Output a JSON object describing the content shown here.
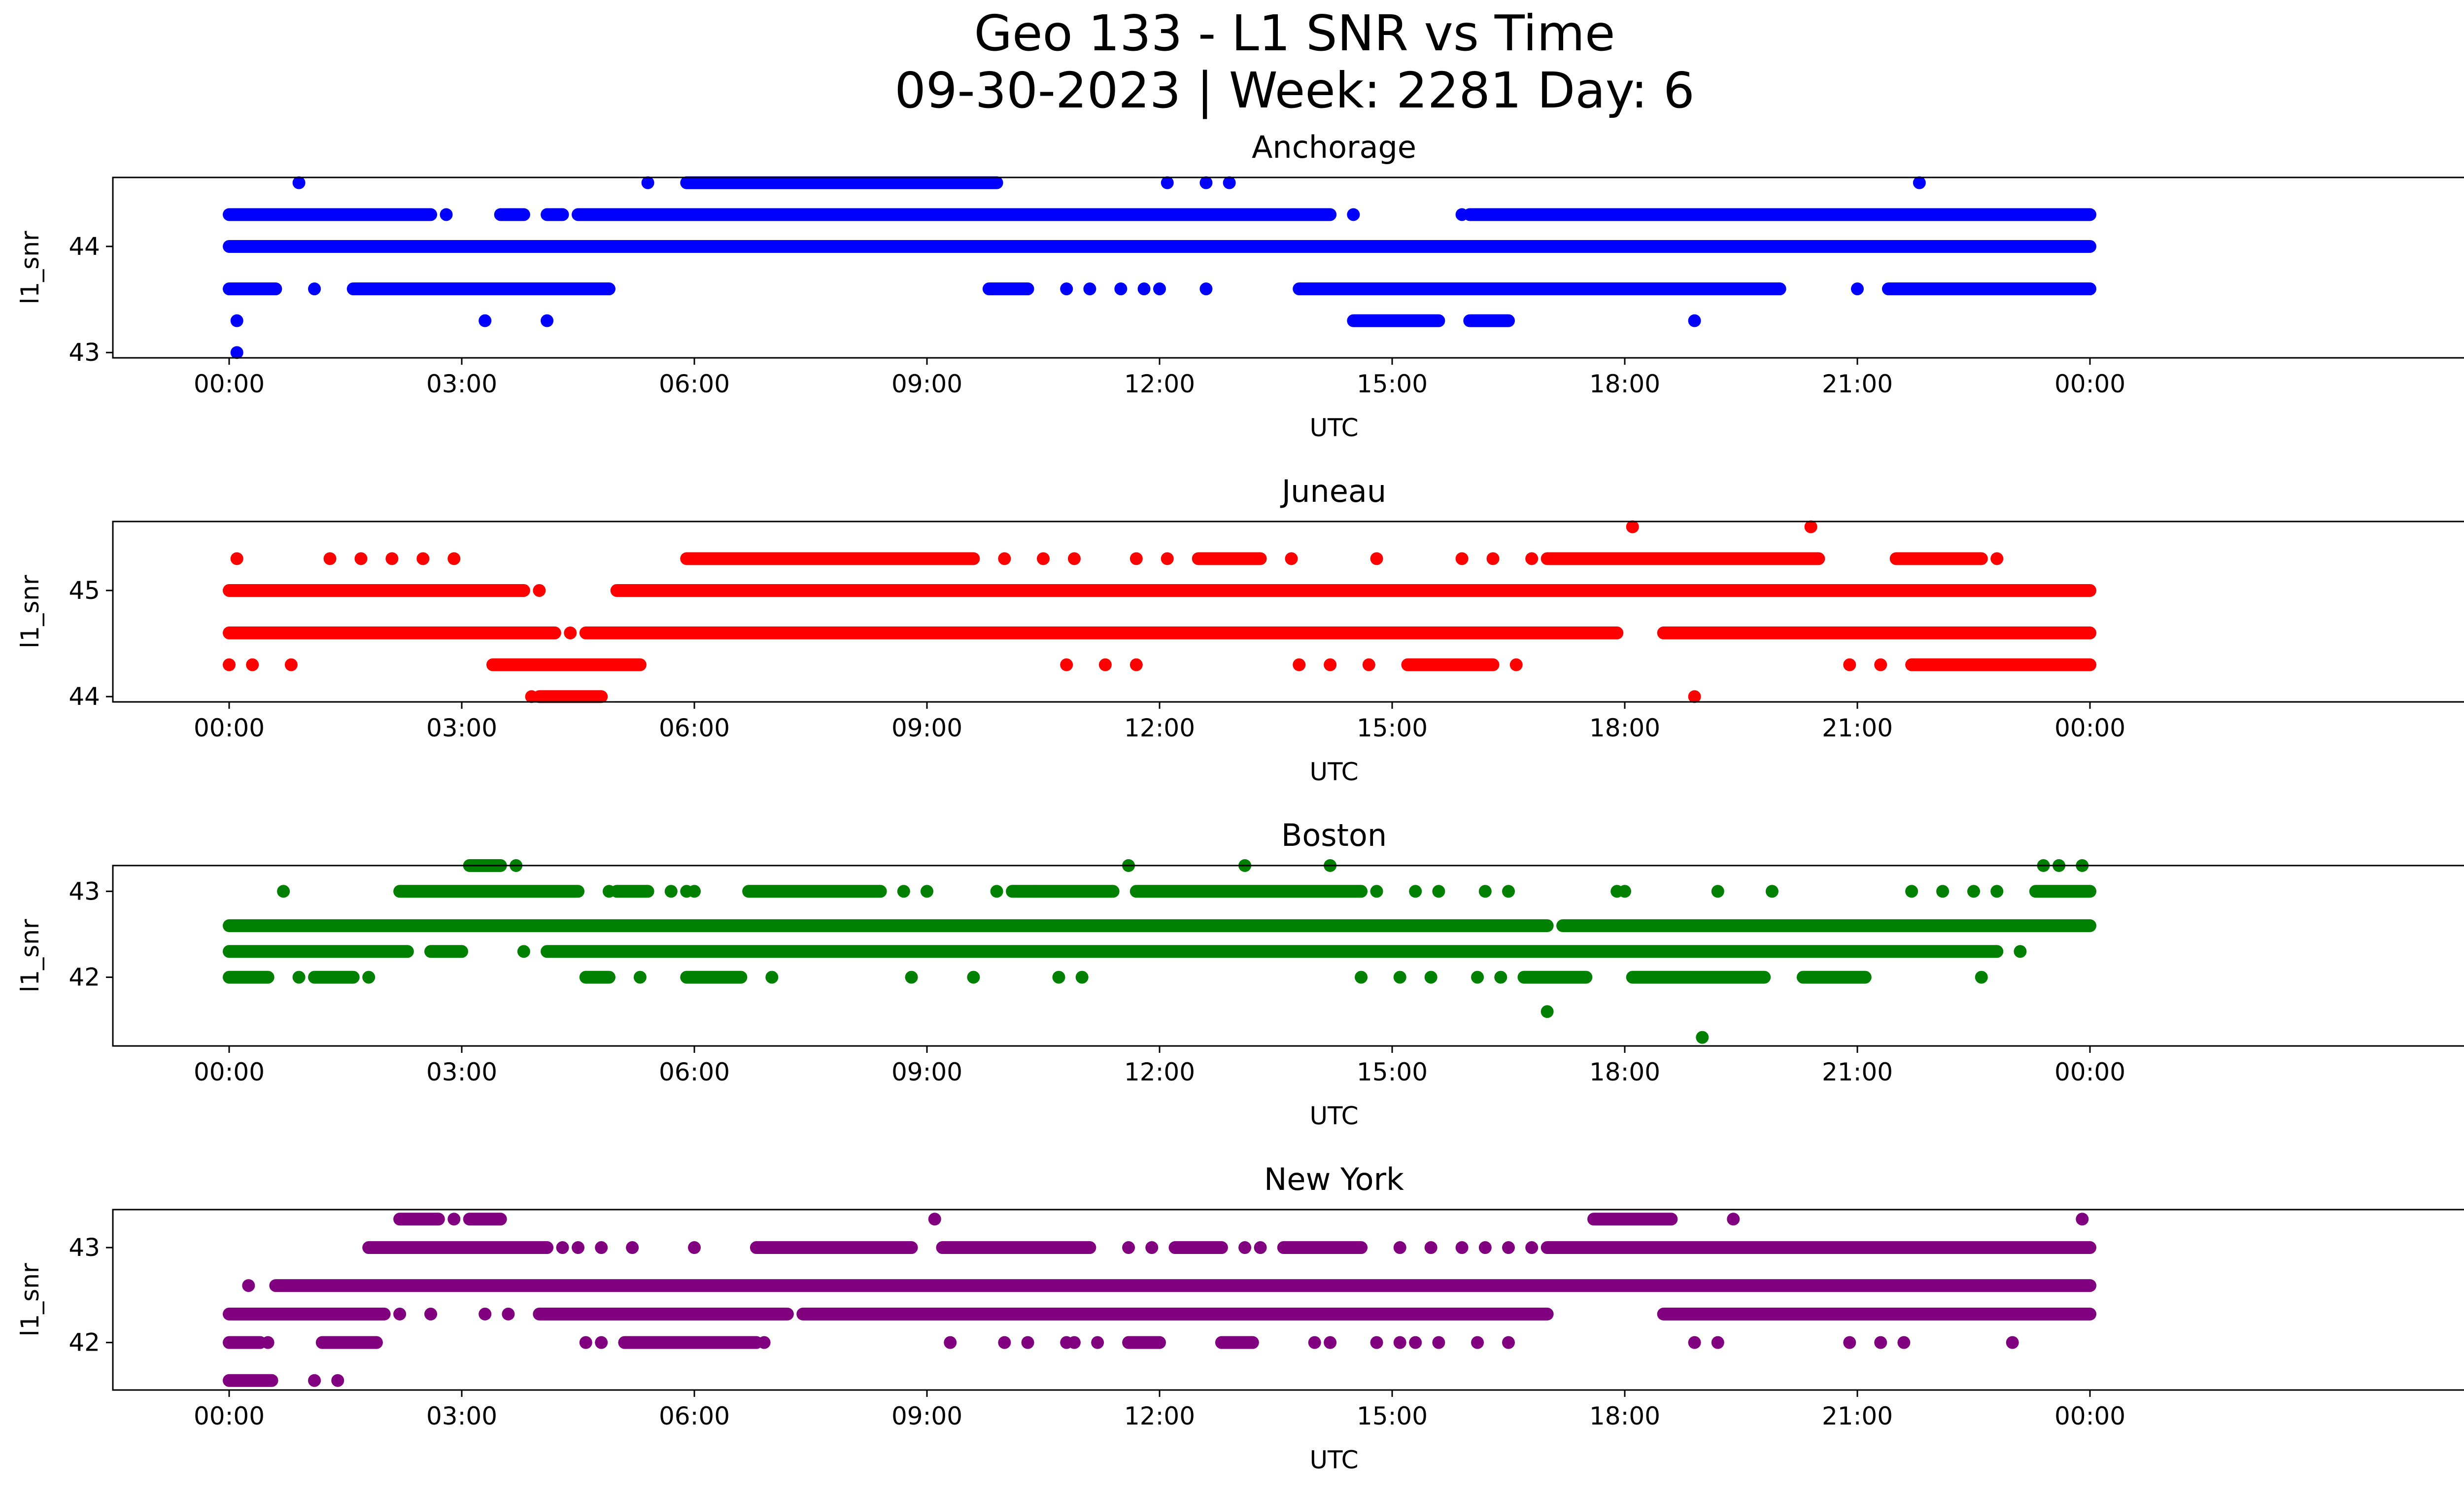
{
  "figure": {
    "title_line1": "Geo 133 - L1 SNR vs Time",
    "title_line2": "09-30-2023 | Week: 2281 Day: 6"
  },
  "chart_data": [
    {
      "type": "scatter",
      "title": "Anchorage",
      "xlabel": "UTC",
      "ylabel": "l1_snr",
      "color": "#0000ff",
      "x_unit": "hours UTC from 2023-09-30 00:00",
      "xlim": [
        -1.5,
        30.0
      ],
      "ylim": [
        42.95,
        44.65
      ],
      "x_ticks": [
        "00:00",
        "03:00",
        "06:00",
        "09:00",
        "12:00",
        "15:00",
        "18:00",
        "21:00",
        "00:00"
      ],
      "y_ticks": [
        43,
        44
      ],
      "levels": [
        43.0,
        43.3,
        43.6,
        44.0,
        44.3,
        44.6
      ],
      "series": [
        {
          "y": 44.0,
          "segments": [
            [
              0.0,
              24.0
            ]
          ]
        },
        {
          "y": 44.3,
          "segments": [
            [
              0.0,
              2.6
            ],
            [
              3.5,
              3.8
            ],
            [
              4.1,
              4.3
            ],
            [
              4.5,
              14.2
            ],
            [
              16.0,
              24.0
            ]
          ],
          "points": [
            2.8,
            14.5,
            15.9
          ]
        },
        {
          "y": 43.6,
          "segments": [
            [
              0.0,
              0.6
            ],
            [
              1.6,
              4.9
            ],
            [
              9.8,
              10.3
            ],
            [
              13.8,
              20.0
            ],
            [
              21.4,
              24.0
            ]
          ],
          "points": [
            1.1,
            10.8,
            11.1,
            11.5,
            11.8,
            12.0,
            12.6,
            21.0
          ]
        },
        {
          "y": 44.6,
          "segments": [
            [
              5.9,
              9.9
            ]
          ],
          "points": [
            0.9,
            5.4,
            12.1,
            12.6,
            12.9,
            21.8
          ]
        },
        {
          "y": 43.3,
          "segments": [
            [
              14.5,
              15.6
            ],
            [
              16.0,
              16.5
            ]
          ],
          "points": [
            0.1,
            3.3,
            4.1,
            18.9
          ]
        },
        {
          "y": 43.0,
          "points": [
            0.1
          ]
        }
      ]
    },
    {
      "type": "scatter",
      "title": "Juneau",
      "xlabel": "UTC",
      "ylabel": "l1_snr",
      "color": "#ff0000",
      "x_unit": "hours UTC from 2023-09-30 00:00",
      "xlim": [
        -1.5,
        30.0
      ],
      "ylim": [
        43.95,
        45.65
      ],
      "x_ticks": [
        "00:00",
        "03:00",
        "06:00",
        "09:00",
        "12:00",
        "15:00",
        "18:00",
        "21:00",
        "00:00"
      ],
      "y_ticks": [
        44,
        45
      ],
      "levels": [
        44.0,
        44.3,
        44.6,
        45.0,
        45.3,
        45.6
      ],
      "series": [
        {
          "y": 45.0,
          "segments": [
            [
              0.0,
              3.8
            ],
            [
              5.0,
              24.0
            ]
          ],
          "points": [
            4.0
          ]
        },
        {
          "y": 44.6,
          "segments": [
            [
              0.0,
              4.2
            ],
            [
              4.6,
              17.9
            ],
            [
              18.5,
              24.0
            ]
          ],
          "points": [
            4.4
          ]
        },
        {
          "y": 44.3,
          "segments": [
            [
              3.4,
              5.3
            ],
            [
              15.2,
              16.3
            ],
            [
              21.7,
              24.0
            ]
          ],
          "points": [
            0.0,
            0.3,
            0.8,
            10.8,
            11.3,
            11.7,
            13.8,
            14.2,
            14.7,
            16.6,
            20.9,
            21.3
          ]
        },
        {
          "y": 45.3,
          "segments": [
            [
              5.9,
              9.6
            ],
            [
              12.5,
              13.3
            ],
            [
              17.0,
              20.5
            ],
            [
              21.5,
              22.6
            ]
          ],
          "points": [
            0.1,
            1.3,
            1.7,
            2.1,
            2.5,
            2.9,
            10.0,
            10.5,
            10.9,
            11.7,
            12.1,
            13.7,
            14.8,
            15.9,
            16.3,
            16.8,
            22.8
          ]
        },
        {
          "y": 44.0,
          "segments": [
            [
              4.0,
              4.8
            ]
          ],
          "points": [
            3.9,
            18.9
          ]
        },
        {
          "y": 45.6,
          "points": [
            18.1,
            20.4
          ]
        }
      ]
    },
    {
      "type": "scatter",
      "title": "Boston",
      "xlabel": "UTC",
      "ylabel": "l1_snr",
      "color": "#008000",
      "x_unit": "hours UTC from 2023-09-30 00:00",
      "xlim": [
        -1.5,
        30.0
      ],
      "ylim": [
        41.2,
        43.3
      ],
      "x_ticks": [
        "00:00",
        "03:00",
        "06:00",
        "09:00",
        "12:00",
        "15:00",
        "18:00",
        "21:00",
        "00:00"
      ],
      "y_ticks": [
        42,
        43
      ],
      "levels": [
        41.3,
        41.6,
        42.0,
        42.3,
        42.6,
        43.0,
        43.3
      ],
      "series": [
        {
          "y": 42.6,
          "segments": [
            [
              0.0,
              17.0
            ],
            [
              17.2,
              24.0
            ]
          ],
          "points": [
            0.1
          ]
        },
        {
          "y": 42.3,
          "segments": [
            [
              0.0,
              2.3
            ],
            [
              2.6,
              3.0
            ],
            [
              4.1,
              22.8
            ]
          ],
          "points": [
            3.8,
            23.1
          ]
        },
        {
          "y": 42.0,
          "segments": [
            [
              0.0,
              0.5
            ],
            [
              1.1,
              1.6
            ],
            [
              4.6,
              4.9
            ],
            [
              5.9,
              6.6
            ],
            [
              16.7,
              17.5
            ],
            [
              18.1,
              19.8
            ],
            [
              20.3,
              21.1
            ]
          ],
          "points": [
            0.9,
            1.8,
            5.3,
            7.0,
            8.8,
            9.6,
            10.7,
            11.0,
            14.6,
            15.1,
            15.5,
            16.1,
            16.4,
            22.6
          ]
        },
        {
          "y": 43.0,
          "segments": [
            [
              2.2,
              4.5
            ],
            [
              5.0,
              5.4
            ],
            [
              6.7,
              8.4
            ],
            [
              10.1,
              11.4
            ],
            [
              11.7,
              14.6
            ],
            [
              23.3,
              24.0
            ]
          ],
          "points": [
            0.7,
            4.9,
            5.7,
            5.9,
            6.0,
            8.7,
            9.0,
            9.9,
            10.4,
            14.8,
            15.3,
            15.6,
            16.2,
            16.5,
            17.9,
            18.0,
            19.2,
            19.9,
            21.7,
            22.1,
            22.5,
            22.8
          ]
        },
        {
          "y": 43.3,
          "segments": [
            [
              3.1,
              3.5
            ]
          ],
          "points": [
            3.7,
            11.6,
            13.1,
            14.2,
            23.4,
            23.6,
            23.9
          ]
        },
        {
          "y": 41.6,
          "points": [
            17.0
          ]
        },
        {
          "y": 41.3,
          "points": [
            19.0
          ]
        }
      ]
    },
    {
      "type": "scatter",
      "title": "New York",
      "xlabel": "UTC",
      "ylabel": "l1_snr",
      "color": "#800080",
      "x_unit": "hours UTC from 2023-09-30 00:00",
      "xlim": [
        -1.5,
        30.0
      ],
      "ylim": [
        41.5,
        43.4
      ],
      "x_ticks": [
        "00:00",
        "03:00",
        "06:00",
        "09:00",
        "12:00",
        "15:00",
        "18:00",
        "21:00",
        "00:00"
      ],
      "y_ticks": [
        42,
        43
      ],
      "levels": [
        41.6,
        42.0,
        42.3,
        42.6,
        43.0,
        43.3
      ],
      "series": [
        {
          "y": 42.6,
          "segments": [
            [
              0.6,
              24.0
            ]
          ],
          "points": [
            0.25
          ]
        },
        {
          "y": 42.3,
          "segments": [
            [
              0.0,
              2.0
            ],
            [
              4.0,
              7.2
            ],
            [
              7.4,
              17.0
            ],
            [
              18.5,
              24.0
            ]
          ],
          "points": [
            2.2,
            2.6,
            3.3,
            3.6
          ]
        },
        {
          "y": 42.0,
          "segments": [
            [
              0.0,
              0.4
            ],
            [
              1.2,
              1.9
            ],
            [
              5.1,
              6.8
            ],
            [
              11.6,
              12.0
            ],
            [
              12.8,
              13.2
            ]
          ],
          "points": [
            0.5,
            4.6,
            4.8,
            6.9,
            9.3,
            10.0,
            10.3,
            10.8,
            10.9,
            11.2,
            14.0,
            14.2,
            14.8,
            15.1,
            15.3,
            15.6,
            16.1,
            16.5,
            18.9,
            19.2,
            20.9,
            21.3,
            21.6,
            23.0
          ]
        },
        {
          "y": 43.0,
          "segments": [
            [
              1.8,
              4.1
            ],
            [
              6.8,
              8.8
            ],
            [
              9.2,
              11.1
            ],
            [
              12.2,
              12.8
            ],
            [
              13.6,
              14.6
            ],
            [
              17.0,
              24.0
            ]
          ],
          "points": [
            4.3,
            4.5,
            4.8,
            5.2,
            6.0,
            11.6,
            11.9,
            13.1,
            13.3,
            15.1,
            15.5,
            15.9,
            16.2,
            16.5,
            16.8
          ]
        },
        {
          "y": 43.3,
          "segments": [
            [
              2.2,
              2.7
            ],
            [
              3.1,
              3.5
            ],
            [
              17.6,
              18.6
            ]
          ],
          "points": [
            2.9,
            9.1,
            19.4,
            23.9
          ]
        },
        {
          "y": 41.6,
          "segments": [
            [
              0.0,
              0.55
            ]
          ],
          "points": [
            1.1,
            1.4
          ]
        }
      ]
    }
  ]
}
